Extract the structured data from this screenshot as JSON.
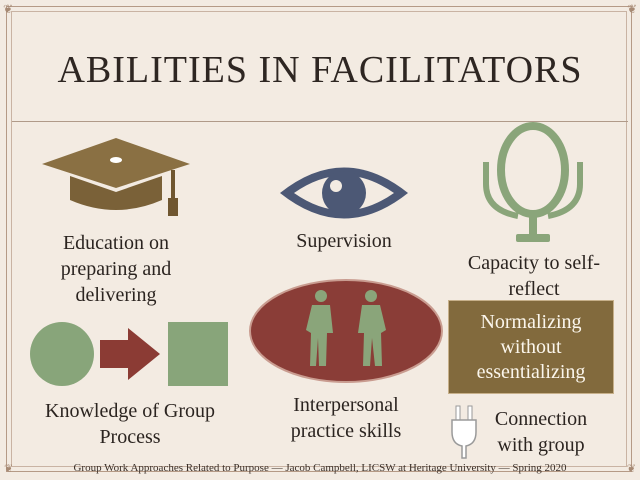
{
  "slide": {
    "title": "ABILITIES IN FACILITATORS",
    "items": {
      "education": "Education on preparing and delivering",
      "supervision": "Supervision",
      "self_reflect": "Capacity to self-reflect",
      "group_process": "Knowledge of Group Process",
      "interpersonal": "Interpersonal practice skills",
      "normalizing": "Normalizing without essentializing",
      "connection": "Connection with group"
    },
    "icons": {
      "education": "graduation-cap-icon",
      "supervision": "eye-icon",
      "self_reflect": "mirror-icon",
      "group_process": "circle-arrow-square-icon",
      "interpersonal": "two-people-icon",
      "connection": "plug-icon"
    },
    "colors": {
      "background": "#f3ebe2",
      "cap": "#8a7043",
      "eye": "#4c5875",
      "mirror": "#8aa57a",
      "process_green": "#88a57a",
      "process_arrow": "#8b3b34",
      "ellipse": "#8a3d37",
      "people": "#8aa57a",
      "normalize_box": "#826a3d"
    }
  },
  "footer": {
    "text": "Group Work Approaches Related to Purpose — Jacob Campbell, LICSW at Heritage University — Spring 2020"
  }
}
